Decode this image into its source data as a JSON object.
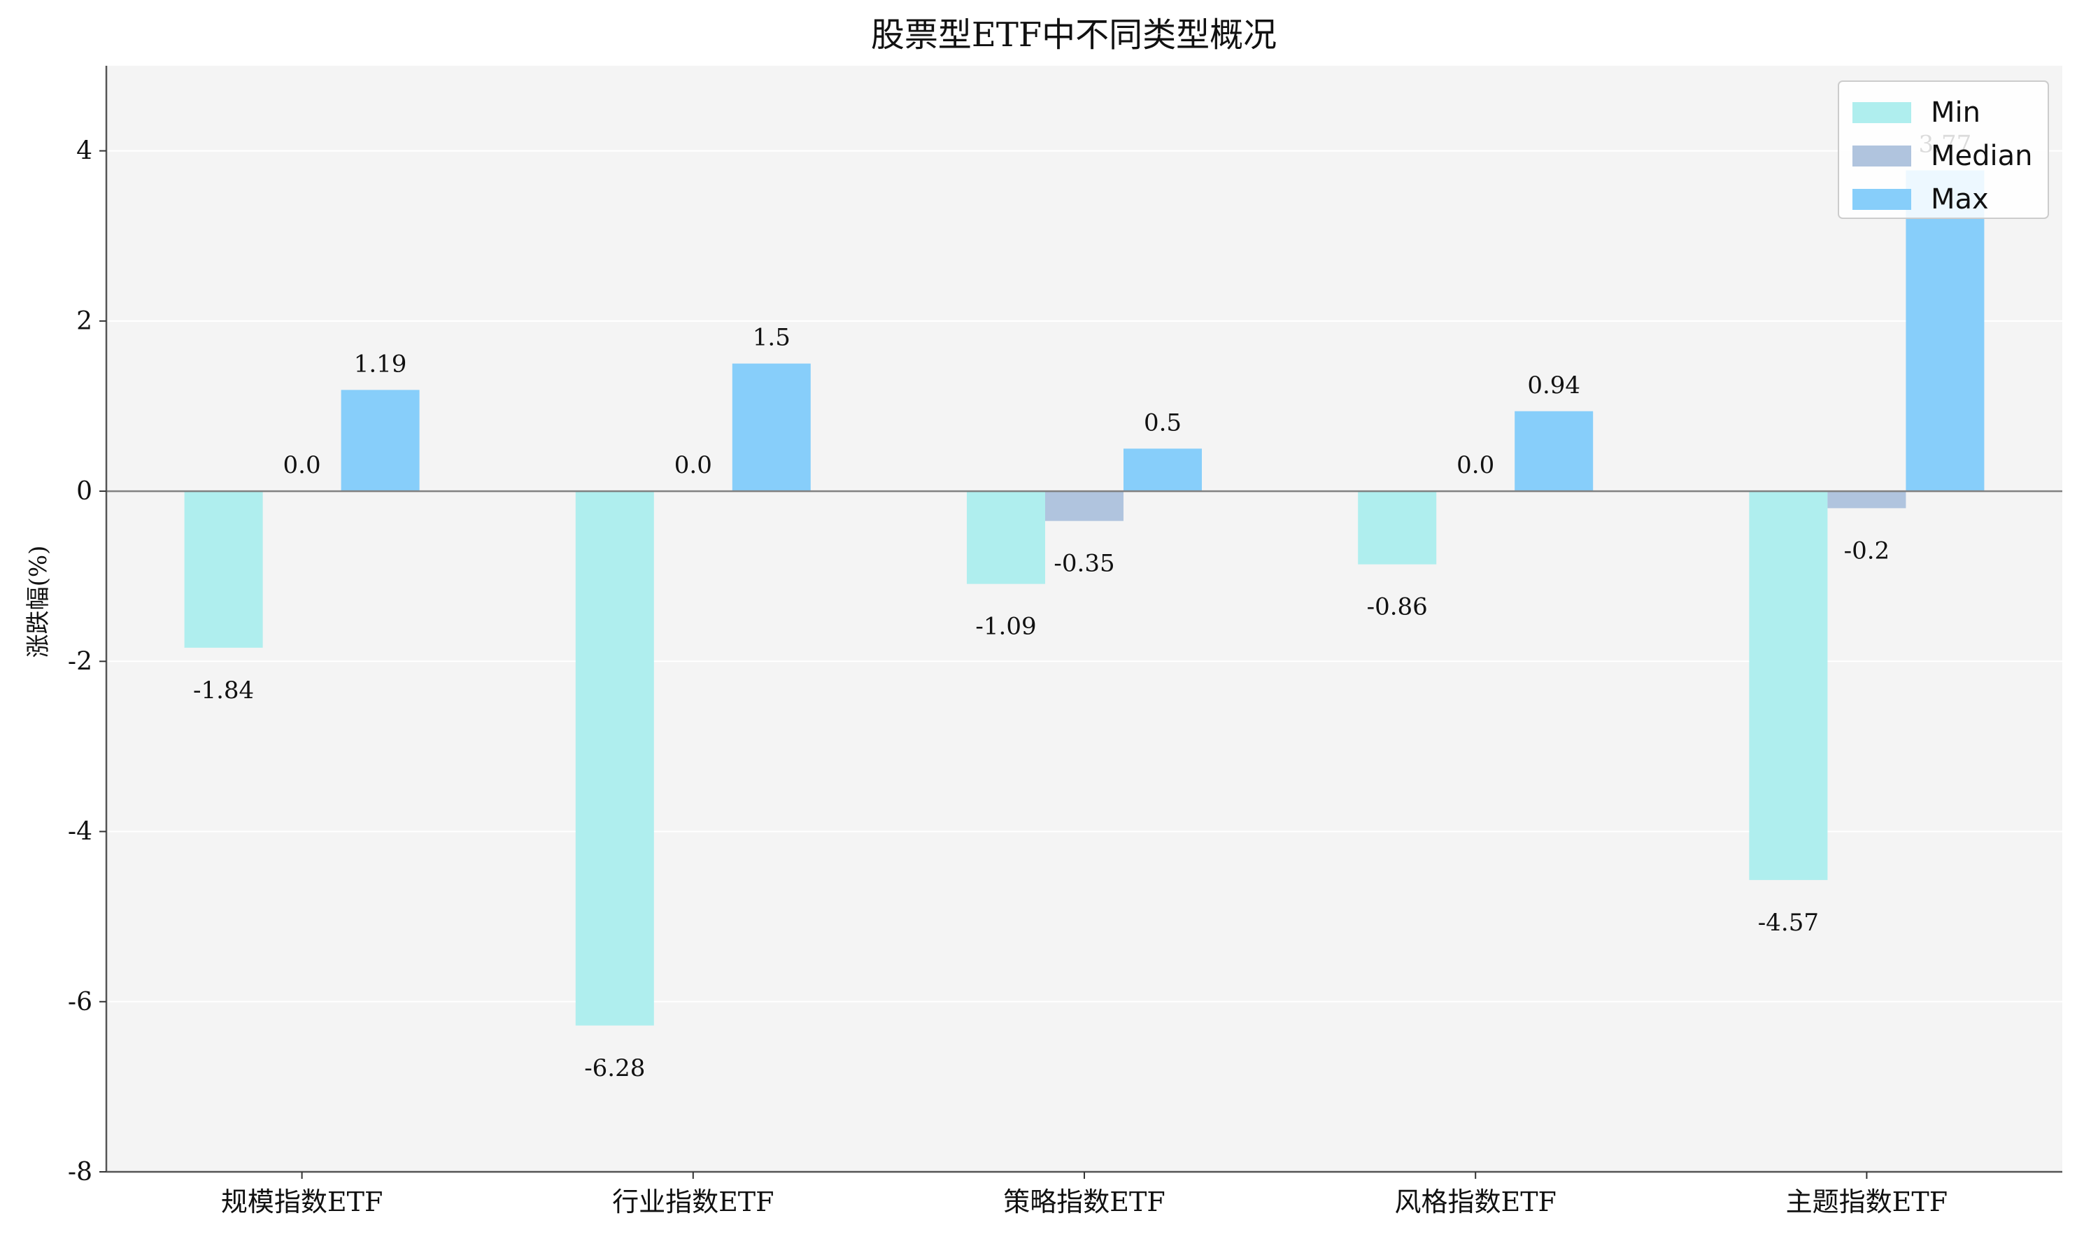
{
  "chart_data": {
    "type": "bar",
    "title": "股票型ETF中不同类型概况",
    "xlabel": "",
    "ylabel": "涨跌幅(%)",
    "ylim": [
      -8,
      5
    ],
    "yticks": [
      -8,
      -6,
      -4,
      -2,
      0,
      2,
      4
    ],
    "ytick_labels": [
      "-8",
      "-6",
      "-4",
      "-2",
      "0",
      "2",
      "4"
    ],
    "categories": [
      "规模指数ETF",
      "行业指数ETF",
      "策略指数ETF",
      "风格指数ETF",
      "主题指数ETF"
    ],
    "series": [
      {
        "name": "Min",
        "color": "#AFEEEE",
        "values": [
          -1.84,
          -6.28,
          -1.09,
          -0.86,
          -4.57
        ],
        "labels": [
          "-1.84",
          "-6.28",
          "-1.09",
          "-0.86",
          "-4.57"
        ]
      },
      {
        "name": "Median",
        "color": "#B0C4DE",
        "values": [
          0.0,
          0.0,
          -0.35,
          0.0,
          -0.2
        ],
        "labels": [
          "0.0",
          "0.0",
          "-0.35",
          "0.0",
          "-0.2"
        ]
      },
      {
        "name": "Max",
        "color": "#87CEFA",
        "values": [
          1.19,
          1.5,
          0.5,
          0.94,
          3.77
        ],
        "labels": [
          "1.19",
          "1.5",
          "0.5",
          "0.94",
          "3.77"
        ]
      }
    ],
    "legend": {
      "position": "top-right",
      "entries": [
        "Min",
        "Median",
        "Max"
      ]
    },
    "grid": true,
    "plot_background": "#F4F4F4",
    "zero_line_color": "#808080"
  }
}
